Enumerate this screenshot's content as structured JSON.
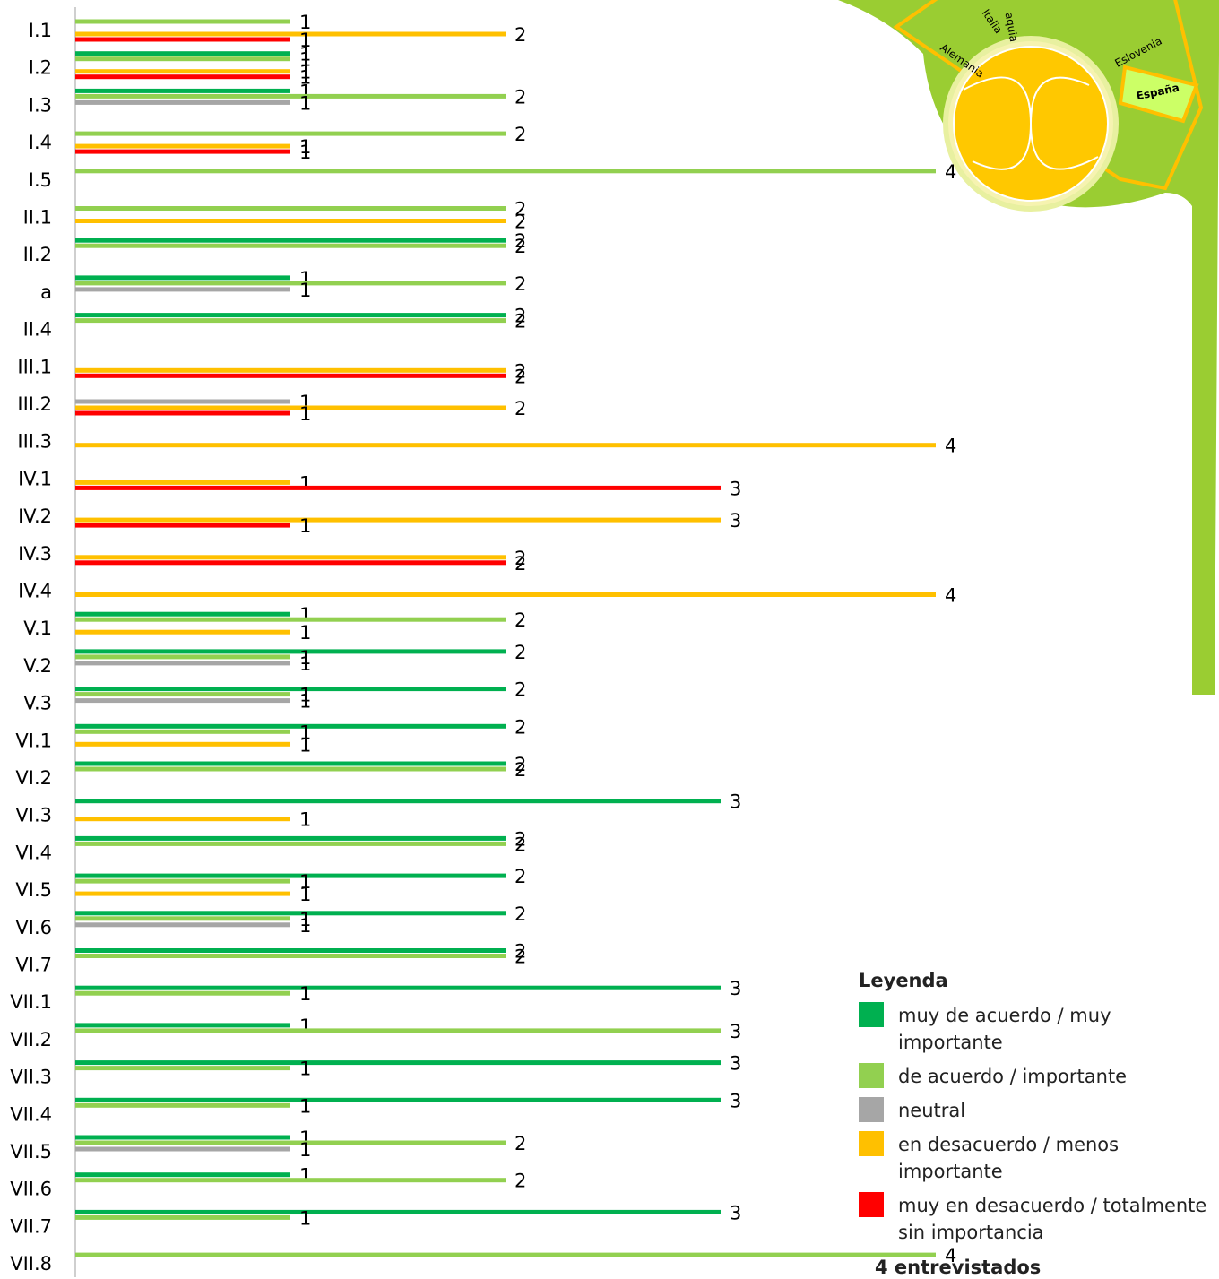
{
  "chart_data": {
    "type": "bar",
    "orientation": "horizontal",
    "categories": [
      "I.1",
      "I.2",
      "I.3",
      "I.4",
      "I.5",
      "II.1",
      "II.2",
      "a",
      "II.4",
      "III.1",
      "III.2",
      "III.3",
      "IV.1",
      "IV.2",
      "IV.3",
      "IV.4",
      "V.1",
      "V.2",
      "V.3",
      "VI.1",
      "VI.2",
      "VI.3",
      "VI.4",
      "VI.5",
      "VI.6",
      "VI.7",
      "VII.1",
      "VII.2",
      "VII.3",
      "VII.4",
      "VII.5",
      "VII.6",
      "VII.7",
      "VII.8"
    ],
    "series": [
      {
        "name": "muy de acuerdo / muy importante",
        "color": "#00b050",
        "values": [
          null,
          1,
          1,
          null,
          null,
          null,
          2,
          1,
          2,
          null,
          null,
          null,
          null,
          null,
          null,
          null,
          1,
          2,
          2,
          2,
          2,
          3,
          2,
          2,
          2,
          2,
          3,
          1,
          3,
          3,
          1,
          1,
          3,
          null
        ]
      },
      {
        "name": "de acuerdo / importante",
        "color": "#92d050",
        "values": [
          1,
          1,
          2,
          2,
          4,
          2,
          2,
          2,
          2,
          null,
          null,
          null,
          null,
          null,
          null,
          null,
          2,
          1,
          1,
          1,
          2,
          null,
          2,
          1,
          1,
          2,
          1,
          3,
          1,
          1,
          2,
          2,
          1,
          4
        ]
      },
      {
        "name": "neutral",
        "color": "#a6a6a6",
        "values": [
          null,
          null,
          1,
          null,
          null,
          null,
          null,
          1,
          null,
          null,
          1,
          null,
          null,
          null,
          null,
          null,
          null,
          1,
          1,
          null,
          null,
          null,
          null,
          null,
          1,
          null,
          null,
          null,
          null,
          null,
          1,
          null,
          null,
          null
        ]
      },
      {
        "name": "en desacuerdo / menos importante",
        "color": "#ffc000",
        "values": [
          2,
          1,
          null,
          1,
          null,
          2,
          null,
          null,
          null,
          2,
          2,
          4,
          1,
          3,
          2,
          4,
          1,
          null,
          null,
          1,
          null,
          1,
          null,
          1,
          null,
          null,
          null,
          null,
          null,
          null,
          null,
          null,
          null,
          null
        ]
      },
      {
        "name": "muy en desacuerdo / totalmente sin importancia",
        "color": "#ff0000",
        "values": [
          1,
          1,
          null,
          1,
          null,
          null,
          null,
          null,
          null,
          2,
          1,
          null,
          3,
          1,
          2,
          null,
          null,
          null,
          null,
          null,
          null,
          null,
          null,
          null,
          null,
          null,
          null,
          null,
          null,
          null,
          null,
          null,
          null,
          null
        ]
      }
    ],
    "xlim": [
      0,
      4
    ],
    "legend_title": "Leyenda",
    "legend_note": "4 entrevistados",
    "annotations": [
      "Alemania",
      "Italia",
      "aquia",
      "Eslovenia",
      "España"
    ]
  }
}
